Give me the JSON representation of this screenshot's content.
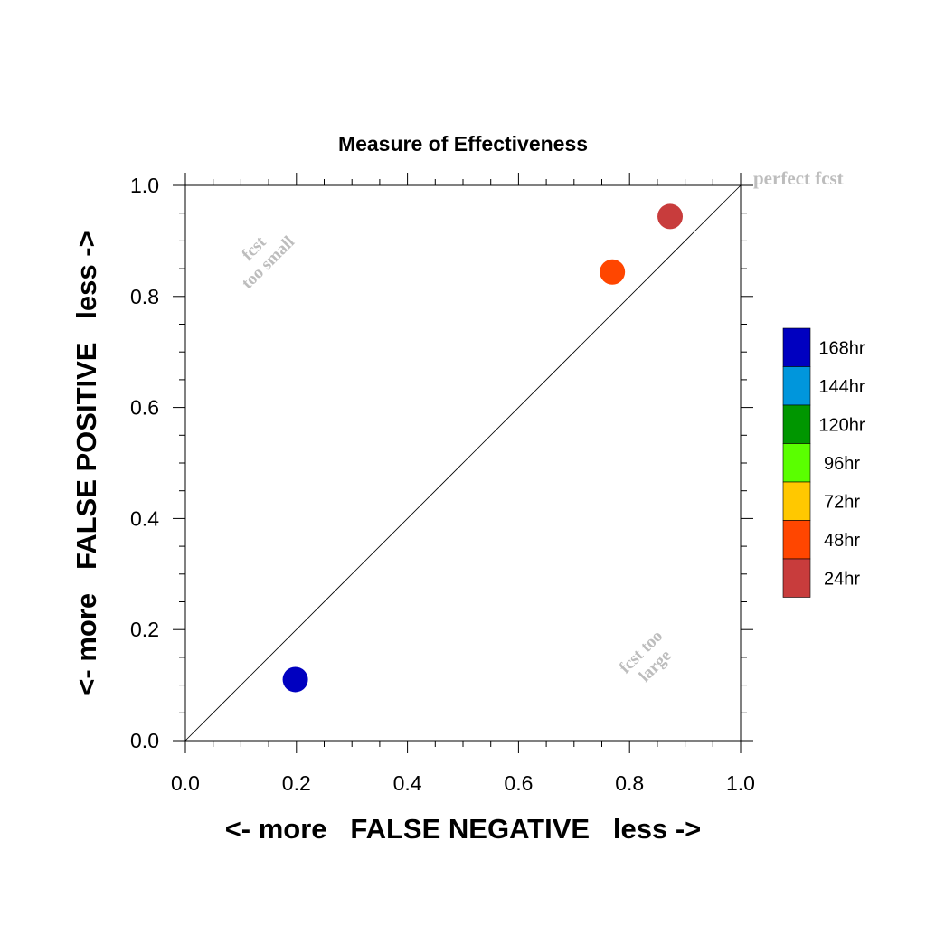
{
  "chart_data": {
    "type": "scatter",
    "title": "Measure of Effectiveness",
    "xlabel": "<- more   FALSE NEGATIVE   less ->",
    "ylabel": "<- more   FALSE POSITIVE   less ->",
    "xlim": [
      0.0,
      1.0
    ],
    "ylim": [
      0.0,
      1.0
    ],
    "x_ticks": [
      "0.0",
      "0.2",
      "0.4",
      "0.6",
      "0.8",
      "1.0"
    ],
    "y_ticks": [
      "0.0",
      "0.2",
      "0.4",
      "0.6",
      "0.8",
      "1.0"
    ],
    "grid": false,
    "reference_line": {
      "from": [
        0,
        0
      ],
      "to": [
        1,
        1
      ],
      "label": "perfect fcst"
    },
    "annotations": [
      {
        "lines": [
          "fcst",
          "too small"
        ],
        "region": "upper-left"
      },
      {
        "lines": [
          "fcst too",
          "large"
        ],
        "region": "lower-right"
      }
    ],
    "legend": {
      "placement": "right",
      "entries": [
        {
          "label": "168hr",
          "color": "#0000c0"
        },
        {
          "label": "144hr",
          "color": "#0096dc"
        },
        {
          "label": "120hr",
          "color": "#009600"
        },
        {
          "label": "96hr",
          "color": "#5aff00"
        },
        {
          "label": "72hr",
          "color": "#ffc800"
        },
        {
          "label": "48hr",
          "color": "#ff4600"
        },
        {
          "label": "24hr",
          "color": "#c83c3c"
        }
      ]
    },
    "points": [
      {
        "x": 0.873,
        "y": 0.944,
        "lead": "24hr",
        "color": "#c83c3c"
      },
      {
        "x": 0.769,
        "y": 0.844,
        "lead": "48hr",
        "color": "#ff4600"
      },
      {
        "x": 0.198,
        "y": 0.11,
        "lead": "168hr",
        "color": "#0000c0"
      }
    ]
  }
}
